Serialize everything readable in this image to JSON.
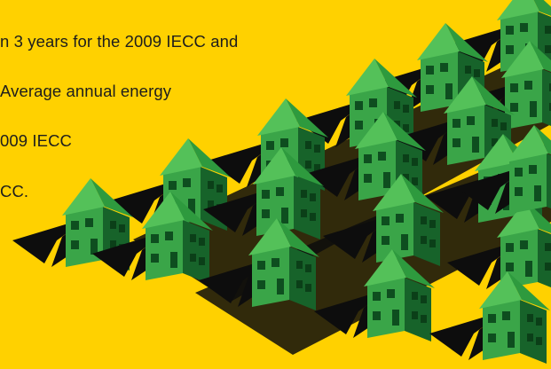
{
  "text_lines": [
    "n 3 years for the 2009 IECC and",
    "Average annual energy",
    "009 IECC",
    "CC."
  ],
  "colors": {
    "background": "#FFD100",
    "text": "#1d1d1d",
    "roof_light": "#45B34A",
    "roof_dark": "#1F7A2C",
    "wall_front": "#3AA548",
    "wall_side": "#17632A",
    "window": "#0E4E1F",
    "shadow": "#0d0d0d"
  },
  "illustration": {
    "subject": "rows of green houses casting long black shadows",
    "house_count": 18
  }
}
